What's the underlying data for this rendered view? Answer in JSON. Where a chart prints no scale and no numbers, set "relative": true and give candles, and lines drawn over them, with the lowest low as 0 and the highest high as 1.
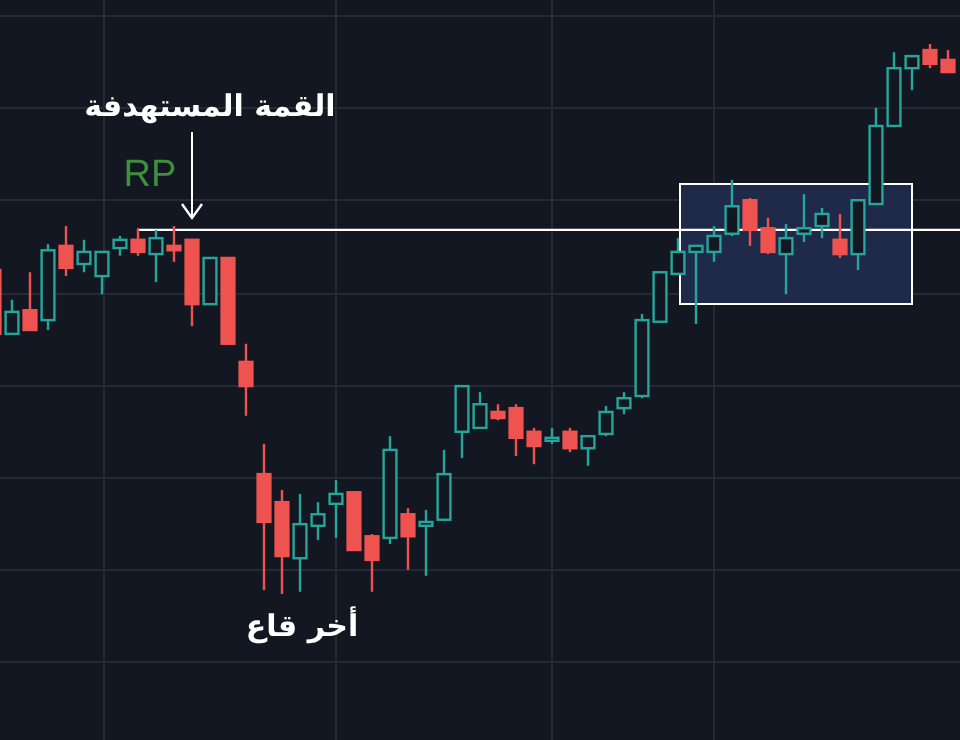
{
  "chart_data": {
    "type": "candlestick",
    "relative": true,
    "grid": true,
    "categories": [
      null,
      null,
      null,
      null,
      null,
      null,
      null,
      null,
      null,
      null,
      null,
      null,
      null,
      null,
      null,
      null,
      null,
      null,
      null,
      null,
      null,
      null,
      null,
      null,
      null,
      null,
      null,
      null,
      null,
      null,
      null,
      null,
      null,
      null,
      null,
      null,
      null,
      null,
      null,
      null,
      null,
      null,
      null,
      null,
      null,
      null,
      null,
      null,
      null,
      null,
      null,
      null,
      null,
      null
    ],
    "ohlc": [
      [
        0.589,
        0.589,
        0.473,
        0.473
      ],
      [
        0.473,
        0.535,
        0.473,
        0.513
      ],
      [
        0.516,
        0.585,
        0.48,
        0.48
      ],
      [
        0.498,
        0.636,
        0.48,
        0.625
      ],
      [
        0.633,
        0.669,
        0.578,
        0.593
      ],
      [
        0.6,
        0.644,
        0.585,
        0.622
      ],
      [
        0.578,
        0.622,
        0.545,
        0.622
      ],
      [
        0.629,
        0.651,
        0.615,
        0.644
      ],
      [
        0.644,
        0.665,
        0.615,
        0.622
      ],
      [
        0.618,
        0.662,
        0.567,
        0.647
      ],
      [
        0.633,
        0.669,
        0.604,
        0.625
      ],
      [
        0.644,
        0.644,
        0.487,
        0.527
      ],
      [
        0.527,
        0.611,
        0.527,
        0.611
      ],
      [
        0.611,
        0.611,
        0.455,
        0.455
      ],
      [
        0.422,
        0.455,
        0.324,
        0.378
      ],
      [
        0.218,
        0.273,
        0.007,
        0.131
      ],
      [
        0.167,
        0.189,
        0,
        0.069
      ],
      [
        0.065,
        0.182,
        0.004,
        0.127
      ],
      [
        0.124,
        0.167,
        0.098,
        0.145
      ],
      [
        0.164,
        0.207,
        0.102,
        0.182
      ],
      [
        0.185,
        0.185,
        0.08,
        0.08
      ],
      [
        0.105,
        0.109,
        0.004,
        0.062
      ],
      [
        0.102,
        0.287,
        0.091,
        0.262
      ],
      [
        0.145,
        0.156,
        0.044,
        0.105
      ],
      [
        0.124,
        0.153,
        0.033,
        0.131
      ],
      [
        0.135,
        0.262,
        0.135,
        0.218
      ],
      [
        0.295,
        0.378,
        0.247,
        0.378
      ],
      [
        0.302,
        0.367,
        0.302,
        0.345
      ],
      [
        0.331,
        0.345,
        0.316,
        0.32
      ],
      [
        0.338,
        0.345,
        0.251,
        0.284
      ],
      [
        0.295,
        0.302,
        0.236,
        0.269
      ],
      [
        0.28,
        0.302,
        0.273,
        0.284
      ],
      [
        0.295,
        0.302,
        0.258,
        0.265
      ],
      [
        0.265,
        0.287,
        0.233,
        0.287
      ],
      [
        0.291,
        0.342,
        0.287,
        0.331
      ],
      [
        0.338,
        0.367,
        0.327,
        0.356
      ],
      [
        0.36,
        0.509,
        0.356,
        0.498
      ],
      [
        0.495,
        0.585,
        0.495,
        0.585
      ],
      [
        0.582,
        0.647,
        0.582,
        0.622
      ],
      [
        0.622,
        0.633,
        0.491,
        0.633
      ],
      [
        0.622,
        0.669,
        0.604,
        0.651
      ],
      [
        0.655,
        0.753,
        0.651,
        0.705
      ],
      [
        0.716,
        0.72,
        0.633,
        0.662
      ],
      [
        0.665,
        0.684,
        0.618,
        0.622
      ],
      [
        0.618,
        0.673,
        0.545,
        0.647
      ],
      [
        0.655,
        0.727,
        0.64,
        0.665
      ],
      [
        0.669,
        0.702,
        0.647,
        0.691
      ],
      [
        0.644,
        0.691,
        0.611,
        0.618
      ],
      [
        0.618,
        0.716,
        0.589,
        0.716
      ],
      [
        0.709,
        0.884,
        0.709,
        0.851
      ],
      [
        0.851,
        0.985,
        0.851,
        0.956
      ],
      [
        0.956,
        0.978,
        0.916,
        0.978
      ],
      [
        0.989,
        1.0,
        0.956,
        0.964
      ],
      [
        0.971,
        0.989,
        0.949,
        0.949
      ]
    ],
    "colors": [
      "#ef5350",
      "#26a69a",
      "#ef5350",
      "#26a69a",
      "#ef5350",
      "#26a69a",
      "#26a69a",
      "#26a69a",
      "#ef5350",
      "#26a69a",
      "#ef5350",
      "#ef5350",
      "#26a69a",
      "#ef5350",
      "#ef5350",
      "#ef5350",
      "#ef5350",
      "#26a69a",
      "#26a69a",
      "#26a69a",
      "#ef5350",
      "#ef5350",
      "#26a69a",
      "#ef5350",
      "#26a69a",
      "#26a69a",
      "#26a69a",
      "#26a69a",
      "#ef5350",
      "#ef5350",
      "#ef5350",
      "#26a69a",
      "#ef5350",
      "#26a69a",
      "#26a69a",
      "#26a69a",
      "#26a69a",
      "#26a69a",
      "#26a69a",
      "#26a69a",
      "#26a69a",
      "#26a69a",
      "#ef5350",
      "#ef5350",
      "#26a69a",
      "#26a69a",
      "#26a69a",
      "#ef5350",
      "#26a69a",
      "#26a69a",
      "#26a69a",
      "#26a69a",
      "#ef5350",
      "#ef5350"
    ],
    "ref_lines": [
      {
        "axis": "y",
        "value": 0.662,
        "label": "RP",
        "color": "#ffffff"
      }
    ],
    "annotations": [
      "القمة المستهدفة",
      "أخر قاع"
    ]
  }
}
